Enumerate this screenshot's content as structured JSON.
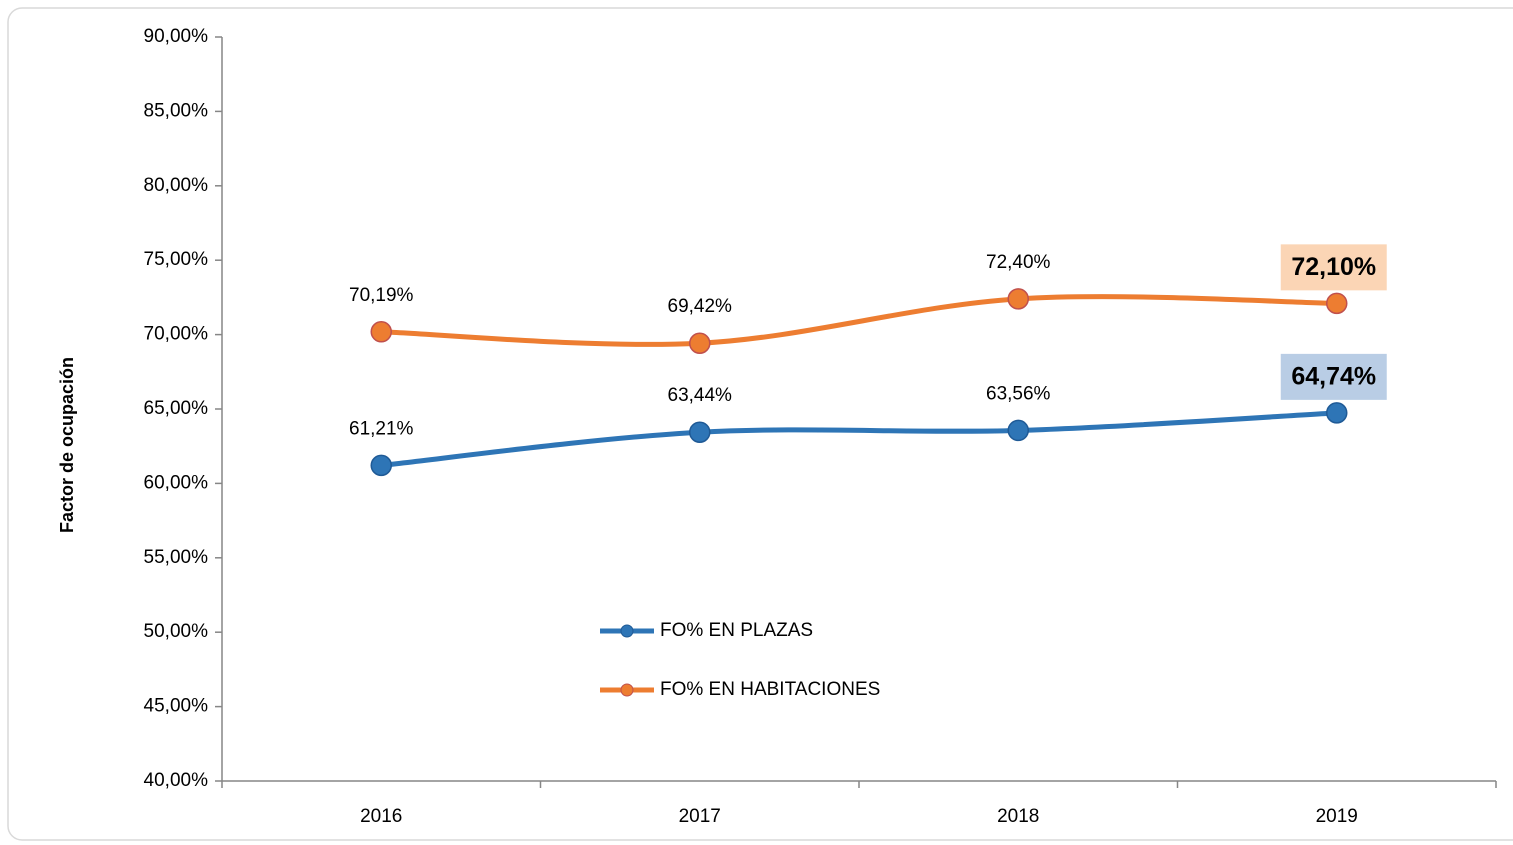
{
  "chart_data": {
    "type": "line",
    "y_axis_label": "Factor de ocupación",
    "categories": [
      "2016",
      "2017",
      "2018",
      "2019"
    ],
    "ylim": [
      40,
      90
    ],
    "yticks": [
      {
        "value": 40,
        "label": "40,00%"
      },
      {
        "value": 45,
        "label": "45,00%"
      },
      {
        "value": 50,
        "label": "50,00%"
      },
      {
        "value": 55,
        "label": "55,00%"
      },
      {
        "value": 60,
        "label": "60,00%"
      },
      {
        "value": 65,
        "label": "65,00%"
      },
      {
        "value": 70,
        "label": "70,00%"
      },
      {
        "value": 75,
        "label": "75,00%"
      },
      {
        "value": 80,
        "label": "80,00%"
      },
      {
        "value": 85,
        "label": "85,00%"
      },
      {
        "value": 90,
        "label": "90,00%"
      }
    ],
    "smooth": true,
    "series": [
      {
        "name": "FO% EN PLAZAS",
        "color": "#2e75b6",
        "marker_edge": "#1f5a96",
        "highlight_color": "#b9cde5",
        "values": [
          61.21,
          63.44,
          63.56,
          64.74
        ],
        "value_labels": [
          "61,21%",
          "63,44%",
          "63,56%",
          "64,74%"
        ]
      },
      {
        "name": "FO% EN HABITACIONES",
        "color": "#ed7d31",
        "marker_edge": "#c0504d",
        "highlight_color": "#fbd5b5",
        "values": [
          70.19,
          69.42,
          72.4,
          72.1
        ],
        "value_labels": [
          "70,19%",
          "69,42%",
          "72,40%",
          "72,10%"
        ]
      }
    ]
  }
}
